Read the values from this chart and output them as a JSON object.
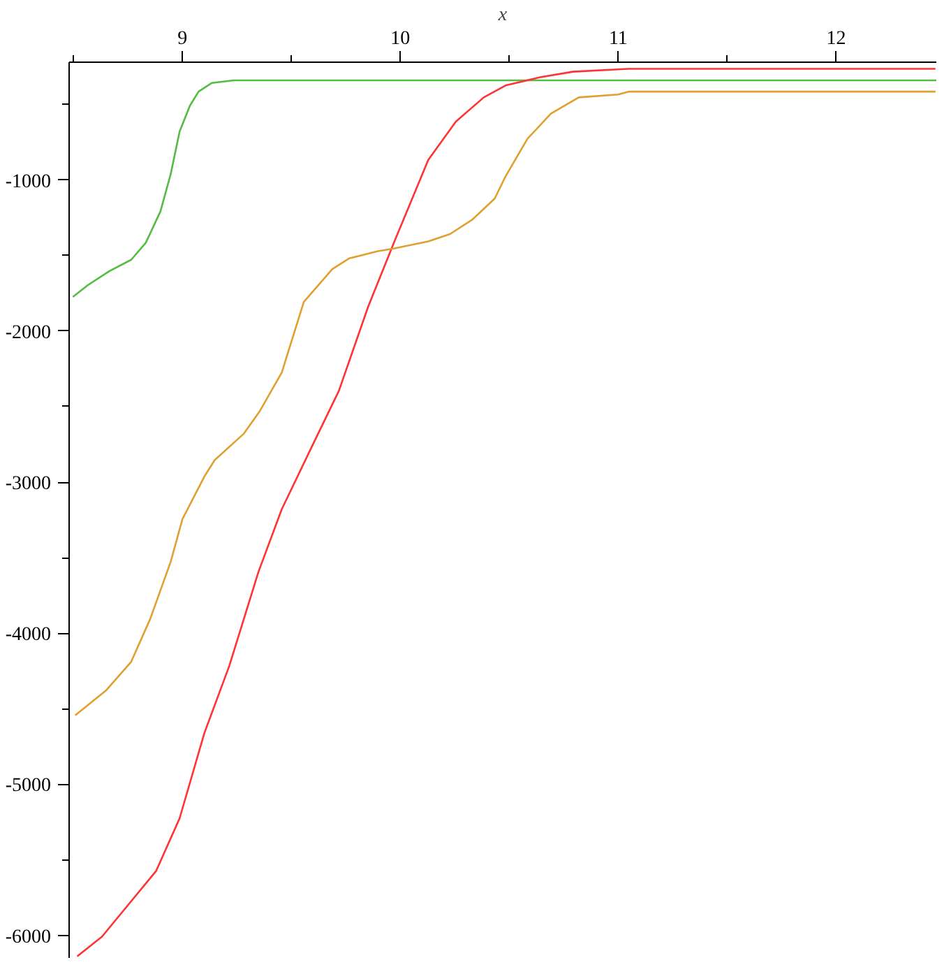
{
  "chart_data": {
    "type": "line",
    "xlabel": "x",
    "xlim": [
      8.48,
      12.46
    ],
    "ylim": [
      -6150,
      -220
    ],
    "xticks": [
      {
        "value": 8.5,
        "label": null
      },
      9,
      {
        "value": 9.5,
        "label": null
      },
      10,
      {
        "value": 10.5,
        "label": null
      },
      11,
      {
        "value": 11.5,
        "label": null
      },
      12
    ],
    "yticks": [
      -1000,
      {
        "value": -1500,
        "label": null
      },
      -2000,
      {
        "value": -2500,
        "label": null
      },
      -3000,
      {
        "value": -3500,
        "label": null
      },
      -4000,
      {
        "value": -4500,
        "label": null
      },
      -5000,
      {
        "value": -5500,
        "label": null
      },
      -6000,
      {
        "value": -500,
        "label": null
      }
    ],
    "grid": false,
    "marker": "none",
    "line_style": "solid",
    "series": [
      {
        "color": "#55bb44",
        "x": [
          8.497,
          8.564,
          8.664,
          8.765,
          8.832,
          8.899,
          8.946,
          8.987,
          9.034,
          9.074,
          9.134,
          9.235,
          12.46
        ],
        "values": [
          -1774,
          -1698,
          -1604,
          -1528,
          -1415,
          -1208,
          -962,
          -679,
          -509,
          -415,
          -358,
          -340,
          -340
        ]
      },
      {
        "color": "#ff3333",
        "x": [
          8.517,
          8.631,
          8.765,
          8.879,
          8.987,
          9.101,
          9.215,
          9.349,
          9.456,
          9.591,
          9.718,
          9.852,
          9.973,
          10.128,
          10.255,
          10.383,
          10.483,
          10.638,
          10.792,
          11.047,
          12.456
        ],
        "values": [
          -6140,
          -6009,
          -5774,
          -5575,
          -5226,
          -4660,
          -4217,
          -3594,
          -3179,
          -2774,
          -2396,
          -1840,
          -1406,
          -868,
          -613,
          -453,
          -374,
          -321,
          -283,
          -264,
          -264
        ]
      },
      {
        "color": "#e0a030",
        "x": [
          8.508,
          8.651,
          8.765,
          8.852,
          8.946,
          9.0,
          9.101,
          9.148,
          9.282,
          9.356,
          9.456,
          9.557,
          9.688,
          9.765,
          9.893,
          9.973,
          10.128,
          10.228,
          10.329,
          10.433,
          10.483,
          10.584,
          10.691,
          10.819,
          11.0,
          11.047,
          12.456
        ],
        "values": [
          -4544,
          -4377,
          -4189,
          -3906,
          -3528,
          -3245,
          -2962,
          -2854,
          -2679,
          -2528,
          -2274,
          -1807,
          -1590,
          -1519,
          -1472,
          -1453,
          -1406,
          -1358,
          -1264,
          -1123,
          -976,
          -726,
          -561,
          -453,
          -434,
          -415,
          -415
        ]
      }
    ]
  }
}
